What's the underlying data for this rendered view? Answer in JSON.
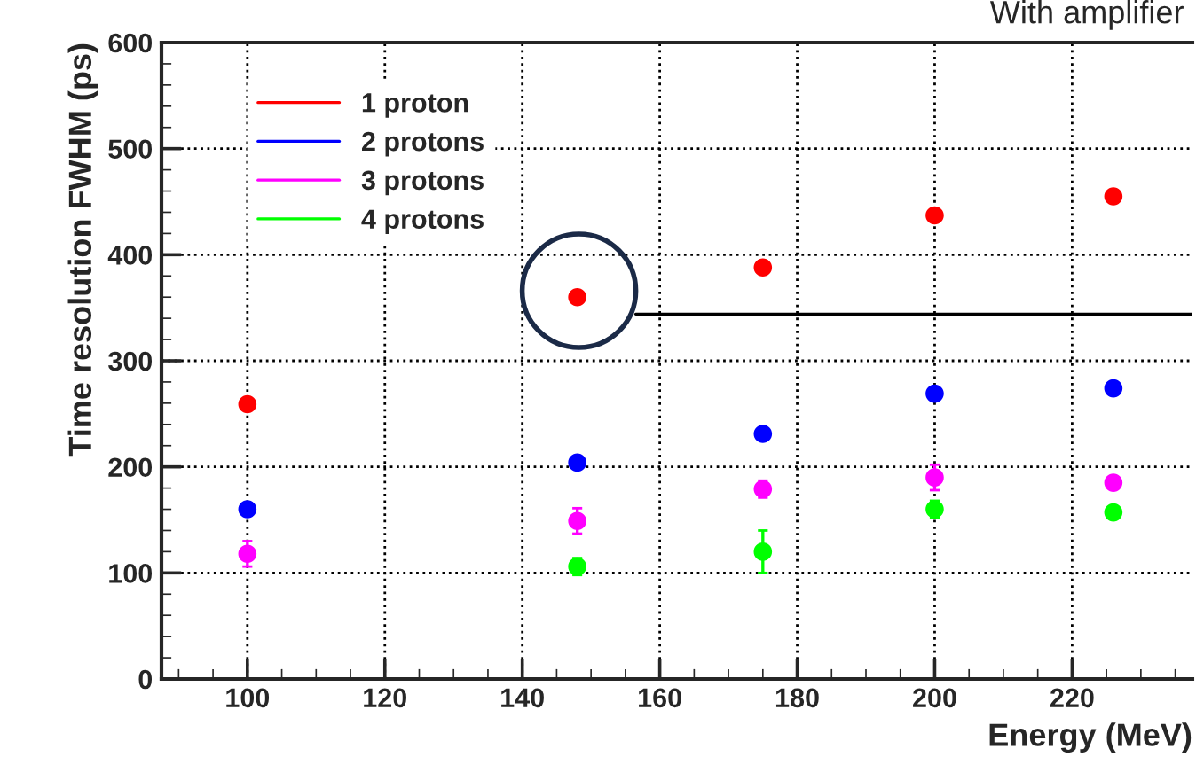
{
  "chart_data": {
    "type": "scatter",
    "title": "With amplifier",
    "xlabel": "Energy (MeV)",
    "ylabel": "Time resolution FWHM (ps)",
    "xlim": [
      87.5,
      237.5
    ],
    "xticks": [
      100,
      120,
      140,
      160,
      180,
      200,
      220
    ],
    "ylim": [
      0,
      600
    ],
    "yticks": [
      0,
      100,
      200,
      300,
      400,
      500,
      600
    ],
    "grid": true,
    "legend": "top left",
    "ref_lines": [
      {
        "axis": "y",
        "value": 344,
        "color": "#000000"
      }
    ],
    "marker": "circle",
    "series": [
      {
        "name": "1 proton",
        "color": "#ff0000",
        "x": [
          100,
          148,
          175,
          200,
          226
        ],
        "values": [
          259,
          360,
          388,
          437,
          455
        ],
        "errors": [
          null,
          null,
          6,
          null,
          6
        ]
      },
      {
        "name": "2 protons",
        "color": "#0000ff",
        "x": [
          100,
          148,
          175,
          200,
          226
        ],
        "values": [
          160,
          204,
          231,
          269,
          274
        ],
        "errors": [
          6,
          null,
          null,
          null,
          null
        ]
      },
      {
        "name": "3 protons",
        "color": "#ff00ff",
        "x": [
          100,
          148,
          175,
          200,
          226
        ],
        "values": [
          118,
          149,
          179,
          190,
          185
        ],
        "errors": [
          12,
          12,
          8,
          12,
          null
        ]
      },
      {
        "name": "4 protons",
        "color": "#00ff00",
        "x": [
          148,
          175,
          200,
          226
        ],
        "values": [
          106,
          120,
          160,
          157
        ],
        "errors": [
          8,
          20,
          8,
          null
        ]
      }
    ]
  }
}
